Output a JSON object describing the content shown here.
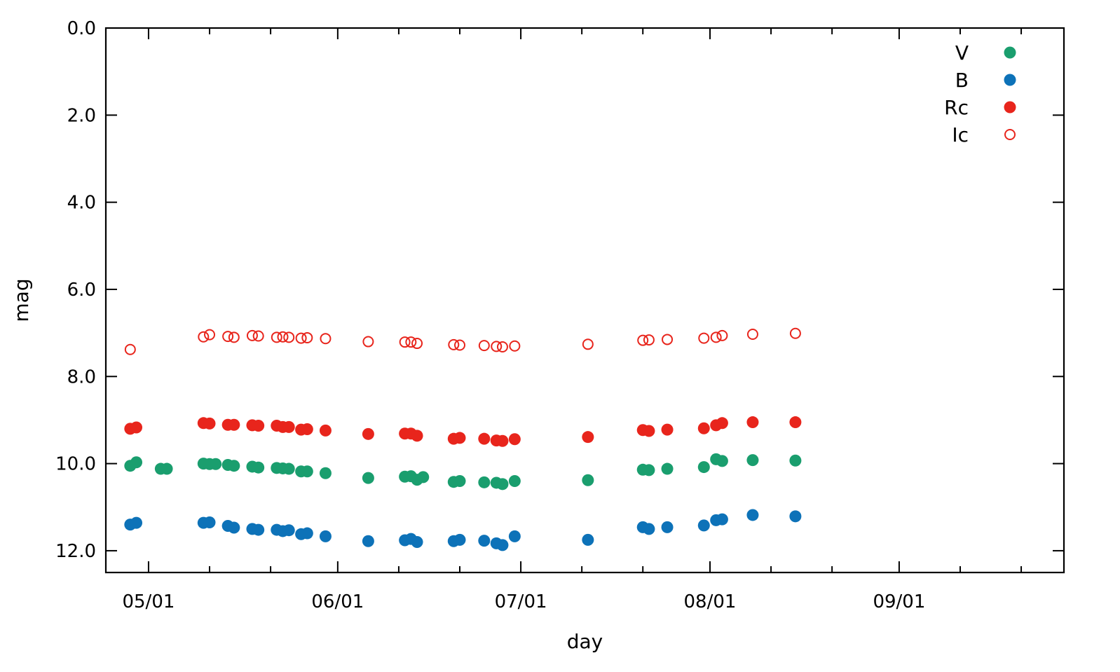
{
  "chart_data": {
    "type": "scatter",
    "title": "",
    "xlabel": "day",
    "ylabel": "mag",
    "x_type": "date",
    "xlim": [
      "2019-04-24",
      "2019-09-28"
    ],
    "ylim": [
      12.5,
      0.0
    ],
    "y_inverted": true,
    "grid": false,
    "legend": "top-right",
    "x_ticks": [
      {
        "date": "2019-05-01",
        "label": "05/01"
      },
      {
        "date": "2019-06-01",
        "label": "06/01"
      },
      {
        "date": "2019-07-01",
        "label": "07/01"
      },
      {
        "date": "2019-08-01",
        "label": "08/01"
      },
      {
        "date": "2019-09-01",
        "label": "09/01"
      }
    ],
    "x_minor_ticks": [
      "2019-05-11",
      "2019-05-21",
      "2019-06-11",
      "2019-06-21",
      "2019-07-11",
      "2019-07-21",
      "2019-08-11",
      "2019-08-21",
      "2019-09-11",
      "2019-09-21"
    ],
    "y_ticks": [
      {
        "value": 0.0,
        "label": "0.0"
      },
      {
        "value": 2.0,
        "label": "2.0"
      },
      {
        "value": 4.0,
        "label": "4.0"
      },
      {
        "value": 6.0,
        "label": "6.0"
      },
      {
        "value": 8.0,
        "label": "8.0"
      },
      {
        "value": 10.0,
        "label": "10.0"
      },
      {
        "value": 12.0,
        "label": "12.0"
      }
    ],
    "series": [
      {
        "name": "V",
        "color": "#1a9e6e",
        "marker": "filled-circle",
        "points": [
          [
            "2019-04-28",
            10.05
          ],
          [
            "2019-04-29",
            9.97
          ],
          [
            "2019-05-03",
            10.12
          ],
          [
            "2019-05-04",
            10.12
          ],
          [
            "2019-05-10",
            10.0
          ],
          [
            "2019-05-11",
            10.01
          ],
          [
            "2019-05-12",
            10.01
          ],
          [
            "2019-05-14",
            10.03
          ],
          [
            "2019-05-15",
            10.05
          ],
          [
            "2019-05-18",
            10.07
          ],
          [
            "2019-05-19",
            10.09
          ],
          [
            "2019-05-22",
            10.1
          ],
          [
            "2019-05-23",
            10.11
          ],
          [
            "2019-05-24",
            10.12
          ],
          [
            "2019-05-26",
            10.18
          ],
          [
            "2019-05-27",
            10.18
          ],
          [
            "2019-05-30",
            10.22
          ],
          [
            "2019-06-06",
            10.33
          ],
          [
            "2019-06-12",
            10.3
          ],
          [
            "2019-06-13",
            10.29
          ],
          [
            "2019-06-14",
            10.37
          ],
          [
            "2019-06-15",
            10.31
          ],
          [
            "2019-06-20",
            10.42
          ],
          [
            "2019-06-21",
            10.4
          ],
          [
            "2019-06-25",
            10.43
          ],
          [
            "2019-06-27",
            10.44
          ],
          [
            "2019-06-28",
            10.47
          ],
          [
            "2019-06-30",
            10.4
          ],
          [
            "2019-07-12",
            10.38
          ],
          [
            "2019-07-21",
            10.14
          ],
          [
            "2019-07-22",
            10.15
          ],
          [
            "2019-07-25",
            10.12
          ],
          [
            "2019-07-31",
            10.08
          ],
          [
            "2019-08-02",
            9.9
          ],
          [
            "2019-08-03",
            9.94
          ],
          [
            "2019-08-08",
            9.92
          ],
          [
            "2019-08-15",
            9.93
          ]
        ]
      },
      {
        "name": "B",
        "color": "#0d72b8",
        "marker": "filled-circle",
        "points": [
          [
            "2019-04-28",
            11.4
          ],
          [
            "2019-04-29",
            11.36
          ],
          [
            "2019-05-10",
            11.36
          ],
          [
            "2019-05-11",
            11.35
          ],
          [
            "2019-05-14",
            11.43
          ],
          [
            "2019-05-15",
            11.47
          ],
          [
            "2019-05-18",
            11.5
          ],
          [
            "2019-05-19",
            11.52
          ],
          [
            "2019-05-22",
            11.52
          ],
          [
            "2019-05-23",
            11.55
          ],
          [
            "2019-05-24",
            11.53
          ],
          [
            "2019-05-26",
            11.62
          ],
          [
            "2019-05-27",
            11.6
          ],
          [
            "2019-05-30",
            11.67
          ],
          [
            "2019-06-06",
            11.78
          ],
          [
            "2019-06-12",
            11.76
          ],
          [
            "2019-06-13",
            11.73
          ],
          [
            "2019-06-14",
            11.8
          ],
          [
            "2019-06-20",
            11.78
          ],
          [
            "2019-06-21",
            11.75
          ],
          [
            "2019-06-25",
            11.77
          ],
          [
            "2019-06-27",
            11.83
          ],
          [
            "2019-06-28",
            11.87
          ],
          [
            "2019-06-30",
            11.67
          ],
          [
            "2019-07-12",
            11.75
          ],
          [
            "2019-07-21",
            11.46
          ],
          [
            "2019-07-22",
            11.5
          ],
          [
            "2019-07-25",
            11.46
          ],
          [
            "2019-07-31",
            11.42
          ],
          [
            "2019-08-02",
            11.3
          ],
          [
            "2019-08-03",
            11.28
          ],
          [
            "2019-08-08",
            11.18
          ],
          [
            "2019-08-15",
            11.21
          ]
        ]
      },
      {
        "name": "Rc",
        "color": "#e8251c",
        "marker": "filled-circle",
        "points": [
          [
            "2019-04-28",
            9.2
          ],
          [
            "2019-04-29",
            9.17
          ],
          [
            "2019-05-10",
            9.07
          ],
          [
            "2019-05-11",
            9.08
          ],
          [
            "2019-05-14",
            9.11
          ],
          [
            "2019-05-15",
            9.11
          ],
          [
            "2019-05-18",
            9.12
          ],
          [
            "2019-05-19",
            9.13
          ],
          [
            "2019-05-22",
            9.13
          ],
          [
            "2019-05-23",
            9.16
          ],
          [
            "2019-05-24",
            9.16
          ],
          [
            "2019-05-26",
            9.22
          ],
          [
            "2019-05-27",
            9.21
          ],
          [
            "2019-05-30",
            9.24
          ],
          [
            "2019-06-06",
            9.32
          ],
          [
            "2019-06-12",
            9.31
          ],
          [
            "2019-06-13",
            9.31
          ],
          [
            "2019-06-14",
            9.36
          ],
          [
            "2019-06-20",
            9.43
          ],
          [
            "2019-06-21",
            9.41
          ],
          [
            "2019-06-25",
            9.43
          ],
          [
            "2019-06-27",
            9.47
          ],
          [
            "2019-06-28",
            9.48
          ],
          [
            "2019-06-30",
            9.44
          ],
          [
            "2019-07-12",
            9.39
          ],
          [
            "2019-07-21",
            9.23
          ],
          [
            "2019-07-22",
            9.25
          ],
          [
            "2019-07-25",
            9.22
          ],
          [
            "2019-07-31",
            9.19
          ],
          [
            "2019-08-02",
            9.12
          ],
          [
            "2019-08-03",
            9.07
          ],
          [
            "2019-08-08",
            9.05
          ],
          [
            "2019-08-15",
            9.05
          ]
        ]
      },
      {
        "name": "Ic",
        "color": "#e8251c",
        "marker": "open-circle",
        "points": [
          [
            "2019-04-28",
            7.38
          ],
          [
            "2019-05-10",
            7.09
          ],
          [
            "2019-05-11",
            7.04
          ],
          [
            "2019-05-14",
            7.08
          ],
          [
            "2019-05-15",
            7.1
          ],
          [
            "2019-05-18",
            7.06
          ],
          [
            "2019-05-19",
            7.07
          ],
          [
            "2019-05-22",
            7.1
          ],
          [
            "2019-05-23",
            7.09
          ],
          [
            "2019-05-24",
            7.1
          ],
          [
            "2019-05-26",
            7.12
          ],
          [
            "2019-05-27",
            7.11
          ],
          [
            "2019-05-30",
            7.13
          ],
          [
            "2019-06-06",
            7.2
          ],
          [
            "2019-06-12",
            7.21
          ],
          [
            "2019-06-13",
            7.21
          ],
          [
            "2019-06-14",
            7.24
          ],
          [
            "2019-06-20",
            7.27
          ],
          [
            "2019-06-21",
            7.28
          ],
          [
            "2019-06-25",
            7.29
          ],
          [
            "2019-06-27",
            7.31
          ],
          [
            "2019-06-28",
            7.32
          ],
          [
            "2019-06-30",
            7.3
          ],
          [
            "2019-07-12",
            7.26
          ],
          [
            "2019-07-21",
            7.17
          ],
          [
            "2019-07-22",
            7.16
          ],
          [
            "2019-07-25",
            7.15
          ],
          [
            "2019-07-31",
            7.12
          ],
          [
            "2019-08-02",
            7.1
          ],
          [
            "2019-08-03",
            7.06
          ],
          [
            "2019-08-08",
            7.03
          ],
          [
            "2019-08-15",
            7.01
          ]
        ]
      }
    ]
  }
}
